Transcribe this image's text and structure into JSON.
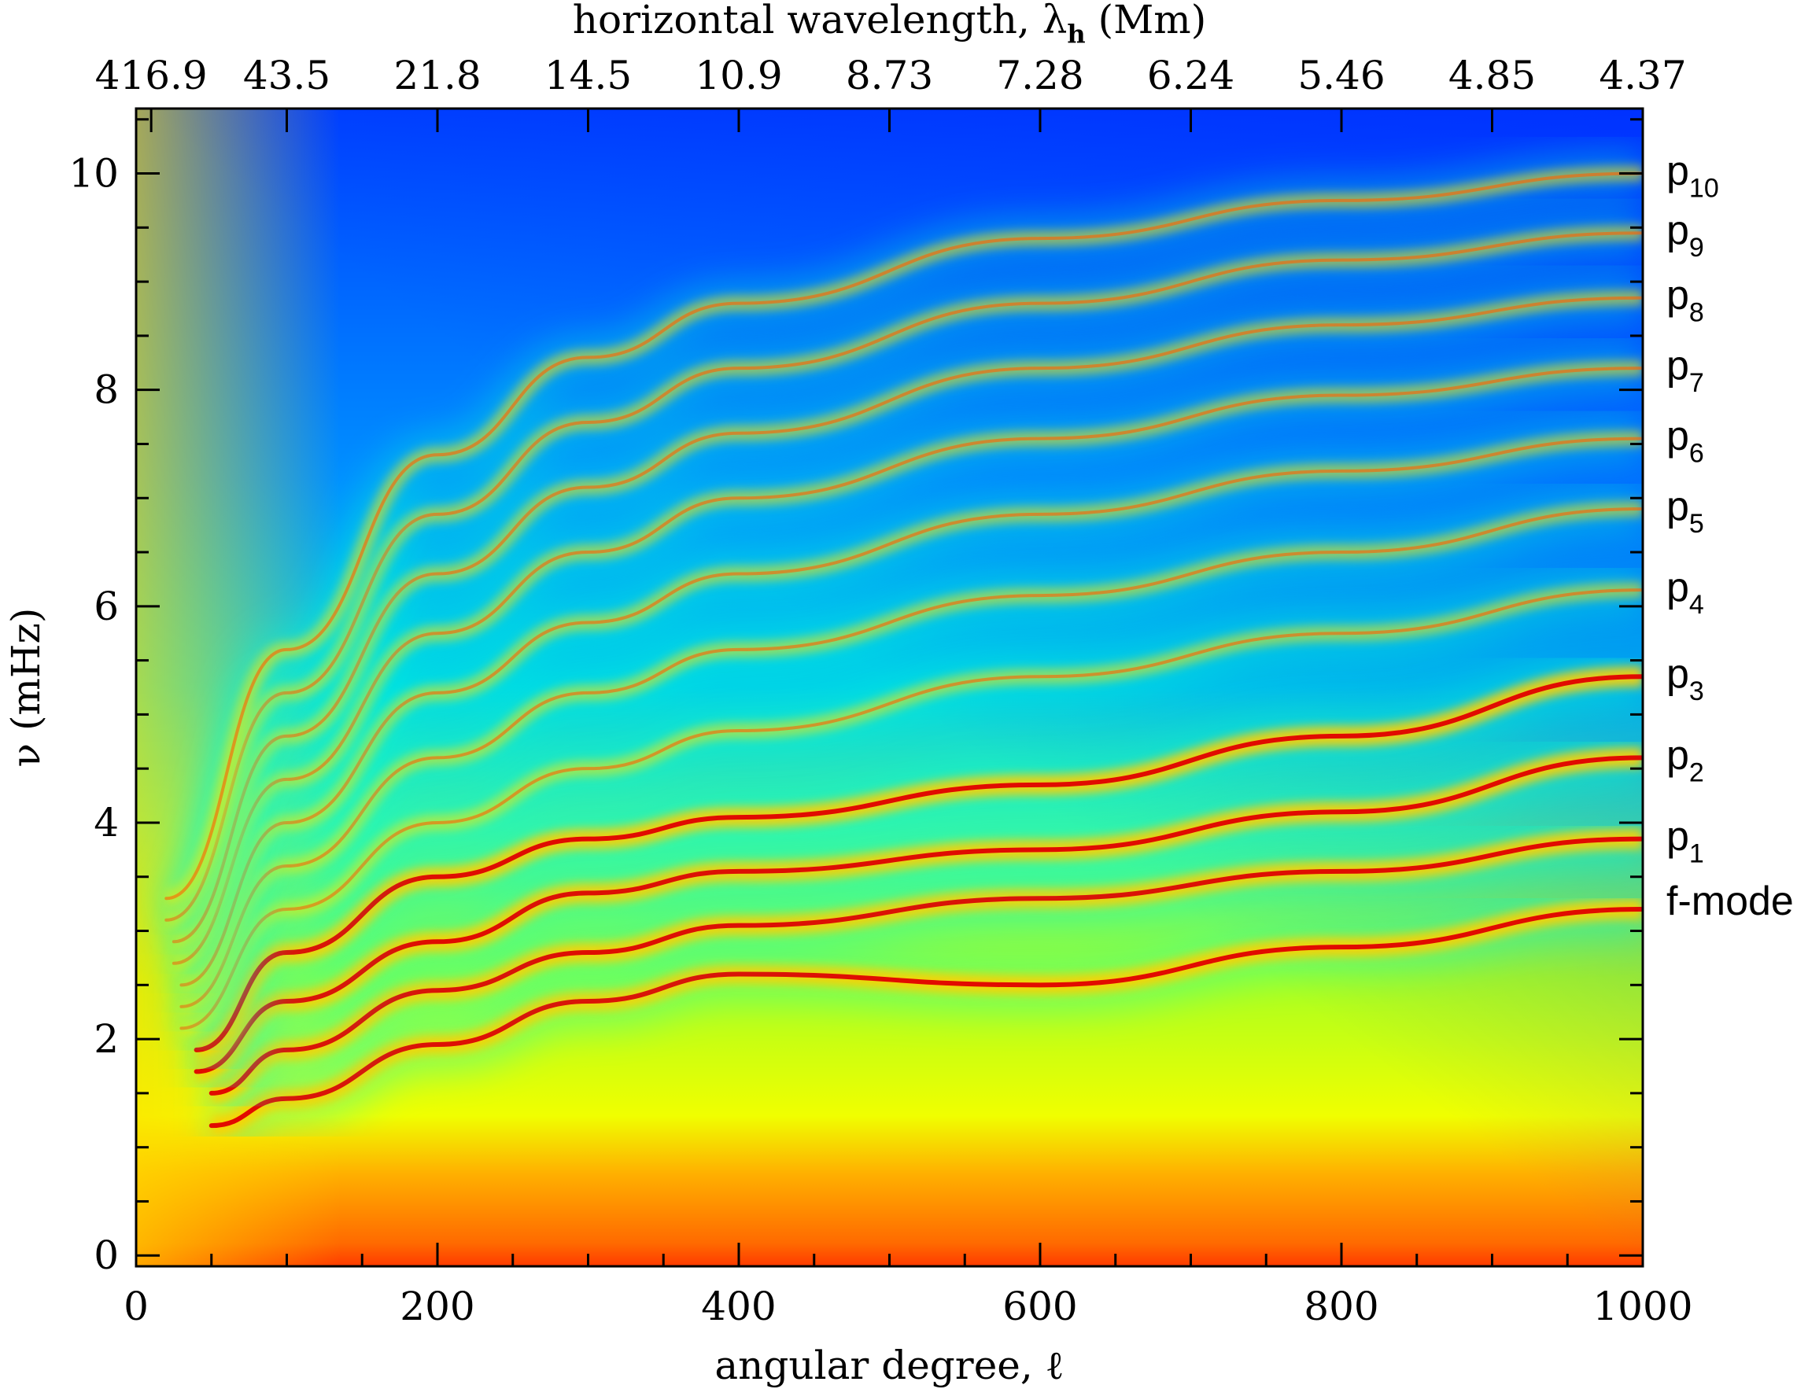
{
  "chart_data": {
    "type": "heatmap",
    "title": "",
    "xlabel": "angular degree, ℓ",
    "ylabel": "ν (mHz)",
    "top_axis_label": "horizontal wavelength, λh (Mm)",
    "top_axis_label_main": "horizontal wavelength, λ",
    "top_axis_label_sub": "h",
    "top_axis_label_tail": " (Mm)",
    "xlim": [
      0,
      1000
    ],
    "ylim": [
      -0.1,
      10.6
    ],
    "x_ticks": [
      0,
      200,
      400,
      600,
      800,
      1000
    ],
    "x_tick_labels": [
      "0",
      "200",
      "400",
      "600",
      "800",
      "1000"
    ],
    "x_minor_step": 50,
    "y_ticks": [
      0,
      2,
      4,
      6,
      8,
      10
    ],
    "y_tick_labels": [
      "0",
      "2",
      "4",
      "6",
      "8",
      "10"
    ],
    "y_minor_step": 0.5,
    "top_ticks": [
      {
        "ell": 10,
        "label": "416.9"
      },
      {
        "ell": 100,
        "label": "43.5"
      },
      {
        "ell": 200,
        "label": "21.8"
      },
      {
        "ell": 300,
        "label": "14.5"
      },
      {
        "ell": 400,
        "label": "10.9"
      },
      {
        "ell": 500,
        "label": "8.73"
      },
      {
        "ell": 600,
        "label": "7.28"
      },
      {
        "ell": 700,
        "label": "6.24"
      },
      {
        "ell": 800,
        "label": "5.46"
      },
      {
        "ell": 900,
        "label": "4.85"
      },
      {
        "ell": 1000,
        "label": "4.37"
      }
    ],
    "mode_labels": [
      {
        "name": "p10",
        "base": "p",
        "sub": "10",
        "nu": 10.0
      },
      {
        "name": "p9",
        "base": "p",
        "sub": "9",
        "nu": 9.45
      },
      {
        "name": "p8",
        "base": "p",
        "sub": "8",
        "nu": 8.85
      },
      {
        "name": "p7",
        "base": "p",
        "sub": "7",
        "nu": 8.2
      },
      {
        "name": "p6",
        "base": "p",
        "sub": "6",
        "nu": 7.55
      },
      {
        "name": "p5",
        "base": "p",
        "sub": "5",
        "nu": 6.9
      },
      {
        "name": "p4",
        "base": "p",
        "sub": "4",
        "nu": 6.15
      },
      {
        "name": "p3",
        "base": "p",
        "sub": "3",
        "nu": 5.35
      },
      {
        "name": "p2",
        "base": "p",
        "sub": "2",
        "nu": 4.6
      },
      {
        "name": "p1",
        "base": "p",
        "sub": "1",
        "nu": 3.85
      },
      {
        "name": "f-mode",
        "base": "f-mode",
        "sub": "",
        "nu": 3.25
      }
    ],
    "ridges": [
      {
        "name": "f-mode",
        "points": [
          [
            50,
            1.2
          ],
          [
            100,
            1.45
          ],
          [
            200,
            1.95
          ],
          [
            300,
            2.35
          ],
          [
            400,
            2.6
          ],
          [
            600,
            2.5
          ],
          [
            800,
            2.85
          ],
          [
            1000,
            3.2
          ]
        ]
      },
      {
        "name": "p1",
        "points": [
          [
            50,
            1.5
          ],
          [
            100,
            1.9
          ],
          [
            200,
            2.45
          ],
          [
            300,
            2.8
          ],
          [
            400,
            3.05
          ],
          [
            600,
            3.3
          ],
          [
            800,
            3.55
          ],
          [
            1000,
            3.85
          ]
        ]
      },
      {
        "name": "p2",
        "points": [
          [
            40,
            1.7
          ],
          [
            100,
            2.35
          ],
          [
            200,
            2.9
          ],
          [
            300,
            3.35
          ],
          [
            400,
            3.55
          ],
          [
            600,
            3.75
          ],
          [
            800,
            4.1
          ],
          [
            1000,
            4.6
          ]
        ]
      },
      {
        "name": "p3",
        "points": [
          [
            40,
            1.9
          ],
          [
            100,
            2.8
          ],
          [
            200,
            3.5
          ],
          [
            300,
            3.85
          ],
          [
            400,
            4.05
          ],
          [
            600,
            4.35
          ],
          [
            800,
            4.8
          ],
          [
            1000,
            5.35
          ]
        ]
      },
      {
        "name": "p4",
        "points": [
          [
            30,
            2.1
          ],
          [
            100,
            3.2
          ],
          [
            200,
            4.0
          ],
          [
            300,
            4.5
          ],
          [
            400,
            4.85
          ],
          [
            600,
            5.35
          ],
          [
            800,
            5.75
          ],
          [
            1000,
            6.15
          ]
        ]
      },
      {
        "name": "p5",
        "points": [
          [
            30,
            2.3
          ],
          [
            100,
            3.6
          ],
          [
            200,
            4.6
          ],
          [
            300,
            5.2
          ],
          [
            400,
            5.6
          ],
          [
            600,
            6.1
          ],
          [
            800,
            6.5
          ],
          [
            1000,
            6.9
          ]
        ]
      },
      {
        "name": "p6",
        "points": [
          [
            30,
            2.5
          ],
          [
            100,
            4.0
          ],
          [
            200,
            5.2
          ],
          [
            300,
            5.85
          ],
          [
            400,
            6.3
          ],
          [
            600,
            6.85
          ],
          [
            800,
            7.25
          ],
          [
            1000,
            7.55
          ]
        ]
      },
      {
        "name": "p7",
        "points": [
          [
            25,
            2.7
          ],
          [
            100,
            4.4
          ],
          [
            200,
            5.75
          ],
          [
            300,
            6.5
          ],
          [
            400,
            7.0
          ],
          [
            600,
            7.55
          ],
          [
            800,
            7.95
          ],
          [
            1000,
            8.2
          ]
        ]
      },
      {
        "name": "p8",
        "points": [
          [
            25,
            2.9
          ],
          [
            100,
            4.8
          ],
          [
            200,
            6.3
          ],
          [
            300,
            7.1
          ],
          [
            400,
            7.6
          ],
          [
            600,
            8.2
          ],
          [
            800,
            8.6
          ],
          [
            1000,
            8.85
          ]
        ]
      },
      {
        "name": "p9",
        "points": [
          [
            20,
            3.1
          ],
          [
            100,
            5.2
          ],
          [
            200,
            6.85
          ],
          [
            300,
            7.7
          ],
          [
            400,
            8.2
          ],
          [
            600,
            8.8
          ],
          [
            800,
            9.2
          ],
          [
            1000,
            9.45
          ]
        ]
      },
      {
        "name": "p10",
        "points": [
          [
            20,
            3.3
          ],
          [
            100,
            5.6
          ],
          [
            200,
            7.4
          ],
          [
            300,
            8.3
          ],
          [
            400,
            8.8
          ],
          [
            600,
            9.4
          ],
          [
            800,
            9.75
          ],
          [
            1000,
            10.0
          ]
        ]
      }
    ],
    "colormap": [
      "#0030ff",
      "#0060ff",
      "#00b0ff",
      "#00e0e0",
      "#40ff80",
      "#c8ff00",
      "#ffff00",
      "#ffa000",
      "#ff3000",
      "#d00000"
    ],
    "grid": false,
    "legend": "none"
  }
}
